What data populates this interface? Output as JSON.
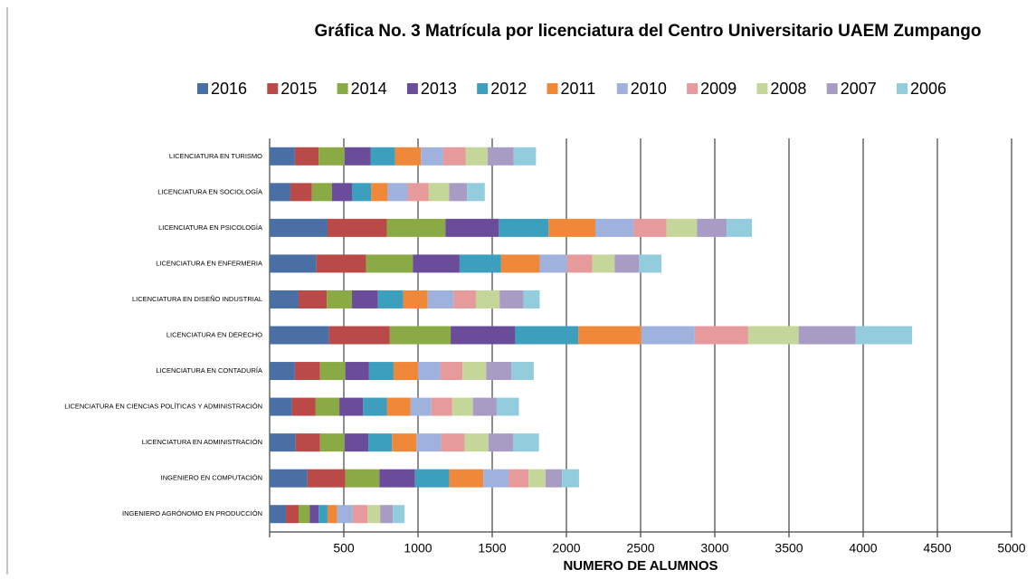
{
  "chart_data": {
    "type": "stacked-barh",
    "title": "Gráfica No. 3 Matrícula por licenciatura del Centro Universitario UAEM Zumpango",
    "x_label": "NUMERO DE ALUMNOS",
    "categories": [
      "LICENCIATURA EN TURISMO",
      "LICENCIATURA EN SOCIOLOGÍA",
      "LICENCIATURA EN PSICOLOGÍA",
      "LICENCIATURA EN ENFERMERIA",
      "LICENCIATURA EN DISEÑO INDUSTRIAL",
      "LICENCIATURA EN DERECHO",
      "LICENCIATURA EN CONTADURÍA",
      "LICENCIATURA EN CIENCIAS POLÍTICAS Y ADMINISTRACIÓN",
      "LICENCIATURA EN ADMINISTRACIÓN",
      "INGENIERO EN COMPUTACIÓN",
      "INGENIERO AGRÓNOMO EN PRODUCCIÓN"
    ],
    "series": [
      {
        "name": "2016",
        "color": "#4a6fa5",
        "values": [
          170,
          140,
          390,
          315,
          195,
          400,
          170,
          150,
          175,
          255,
          110
        ]
      },
      {
        "name": "2015",
        "color": "#b94a48",
        "values": [
          160,
          145,
          400,
          335,
          190,
          410,
          170,
          160,
          165,
          255,
          85
        ]
      },
      {
        "name": "2014",
        "color": "#8aaa45",
        "values": [
          175,
          135,
          395,
          315,
          170,
          410,
          170,
          160,
          165,
          230,
          75
        ]
      },
      {
        "name": "2013",
        "color": "#6b4c9a",
        "values": [
          175,
          135,
          360,
          315,
          175,
          435,
          160,
          160,
          160,
          240,
          60
        ]
      },
      {
        "name": "2012",
        "color": "#3b9fbd",
        "values": [
          165,
          130,
          335,
          280,
          170,
          425,
          165,
          160,
          160,
          230,
          60
        ]
      },
      {
        "name": "2011",
        "color": "#f0883a",
        "values": [
          175,
          110,
          315,
          260,
          165,
          425,
          165,
          160,
          165,
          230,
          65
        ]
      },
      {
        "name": "2010",
        "color": "#9fb2dd",
        "values": [
          150,
          135,
          260,
          185,
          175,
          360,
          150,
          140,
          165,
          170,
          105
        ]
      },
      {
        "name": "2009",
        "color": "#e69a9c",
        "values": [
          150,
          140,
          220,
          170,
          150,
          360,
          150,
          140,
          160,
          135,
          100
        ]
      },
      {
        "name": "2008",
        "color": "#c4d69a",
        "values": [
          150,
          140,
          205,
          150,
          160,
          340,
          160,
          140,
          160,
          115,
          85
        ]
      },
      {
        "name": "2007",
        "color": "#a89bc4",
        "values": [
          175,
          120,
          200,
          165,
          160,
          385,
          170,
          160,
          165,
          110,
          85
        ]
      },
      {
        "name": "2006",
        "color": "#93cddd",
        "values": [
          150,
          120,
          170,
          150,
          110,
          380,
          150,
          150,
          175,
          115,
          80
        ]
      }
    ],
    "xlim": [
      0,
      5000
    ],
    "xticks": [
      500,
      1000,
      1500,
      2000,
      2500,
      3000,
      3500,
      4000,
      4500,
      5000
    ],
    "grid": true
  }
}
